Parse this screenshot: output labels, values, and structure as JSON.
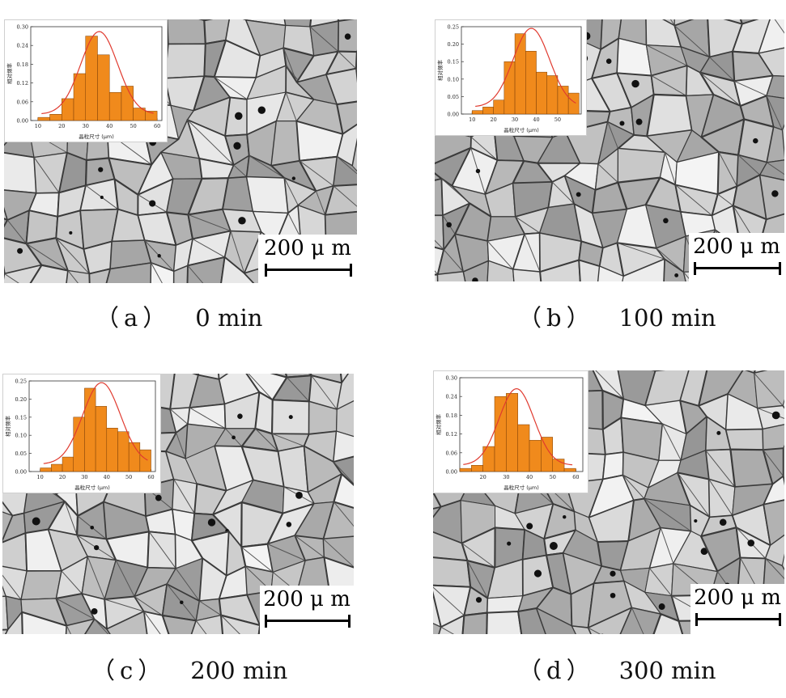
{
  "panels": [
    {
      "label": "（a）",
      "time": "0 min",
      "scalebar": "200 μ m",
      "inset": {
        "y_ticks": [
          "0.30",
          "0.24",
          "0.18",
          "0.12",
          "0.06",
          "0.00"
        ],
        "x_ticks": [
          "10",
          "20",
          "30",
          "40",
          "50",
          "60"
        ],
        "ylabel": "相对频率",
        "xlabel": "晶粒尺寸 (μm)"
      },
      "chart_data": {
        "type": "bar",
        "x": [
          12.5,
          17.5,
          22.5,
          27.5,
          32.5,
          37.5,
          42.5,
          47.5,
          52.5,
          57.5
        ],
        "values": [
          0.01,
          0.02,
          0.07,
          0.15,
          0.27,
          0.21,
          0.09,
          0.11,
          0.04,
          0.03
        ],
        "xlim": [
          7,
          62
        ],
        "ylim": [
          0,
          0.3
        ],
        "bar_color": "#f08a1c",
        "fit_color": "#e03a2f"
      }
    },
    {
      "label": "（b）",
      "time": "100 min",
      "scalebar": "200 μ m",
      "inset": {
        "y_ticks": [
          "0.25",
          "0.20",
          "0.15",
          "0.10",
          "0.05",
          "0.00"
        ],
        "x_ticks": [
          "10",
          "20",
          "30",
          "40",
          "50"
        ],
        "ylabel": "相对频率",
        "xlabel": "晶粒尺寸 (μm)"
      },
      "chart_data": {
        "type": "bar",
        "x": [
          12.5,
          17.5,
          22.5,
          27.5,
          32.5,
          37.5,
          42.5,
          47.5,
          52.5,
          57.5
        ],
        "values": [
          0.01,
          0.02,
          0.04,
          0.15,
          0.23,
          0.18,
          0.12,
          0.11,
          0.08,
          0.06
        ],
        "xlim": [
          5,
          61
        ],
        "ylim": [
          0,
          0.25
        ],
        "bar_color": "#f08a1c",
        "fit_color": "#e03a2f"
      }
    },
    {
      "label": "（c）",
      "time": "200 min",
      "scalebar": "200 μ m",
      "inset": {
        "y_ticks": [
          "0.25",
          "0.20",
          "0.15",
          "0.10",
          "0.05",
          "0.00"
        ],
        "x_ticks": [
          "10",
          "20",
          "30",
          "40",
          "50",
          "60"
        ],
        "ylabel": "相对频率",
        "xlabel": "晶粒尺寸 (μm)"
      },
      "chart_data": {
        "type": "bar",
        "x": [
          12.5,
          17.5,
          22.5,
          27.5,
          32.5,
          37.5,
          42.5,
          47.5,
          52.5,
          57.5
        ],
        "values": [
          0.01,
          0.02,
          0.04,
          0.15,
          0.23,
          0.18,
          0.12,
          0.11,
          0.08,
          0.06
        ],
        "xlim": [
          5,
          62
        ],
        "ylim": [
          0,
          0.25
        ],
        "bar_color": "#f08a1c",
        "fit_color": "#e03a2f"
      }
    },
    {
      "label": "（d）",
      "time": "300 min",
      "scalebar": "200 μ m",
      "inset": {
        "y_ticks": [
          "0.30",
          "0.24",
          "0.18",
          "0.12",
          "0.06",
          "0.00"
        ],
        "x_ticks": [
          "20",
          "30",
          "40",
          "50",
          "60"
        ],
        "ylabel": "相对频率",
        "xlabel": "晶粒尺寸 (μm)"
      },
      "chart_data": {
        "type": "bar",
        "x": [
          12.5,
          17.5,
          22.5,
          27.5,
          32.5,
          37.5,
          42.5,
          47.5,
          52.5,
          57.5
        ],
        "values": [
          0.01,
          0.02,
          0.08,
          0.24,
          0.25,
          0.15,
          0.1,
          0.11,
          0.04,
          0.01
        ],
        "xlim": [
          10,
          63
        ],
        "ylim": [
          0,
          0.3
        ],
        "bar_color": "#f08a1c",
        "fit_color": "#e03a2f"
      }
    }
  ]
}
